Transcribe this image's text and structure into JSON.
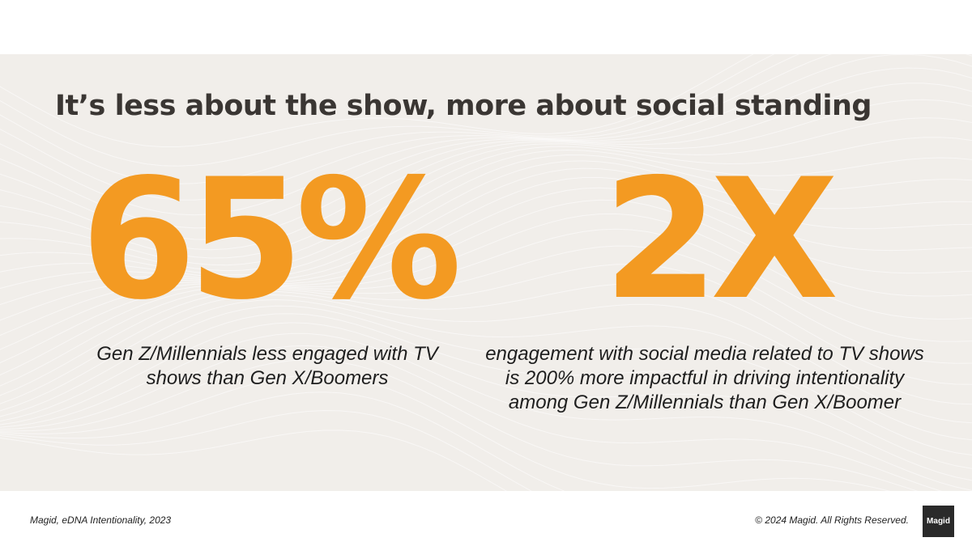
{
  "slide": {
    "title": "It’s less about the show, more about social standing",
    "accent_color": "#f39a22",
    "background_color": "#f1eeea",
    "stats": [
      {
        "value": "65%",
        "caption": "Gen Z/Millennials less engaged with TV shows than Gen X/Boomers"
      },
      {
        "value": "2X",
        "caption": "engagement with social media related to TV shows is 200% more  impactful in driving intentionality among Gen Z/Millennials than Gen X/Boomer"
      }
    ]
  },
  "footer": {
    "source": "Magid, eDNA Intentionality, 2023",
    "copyright": "© 2024 Magid. All Rights Reserved.",
    "logo_text": "Magid"
  }
}
